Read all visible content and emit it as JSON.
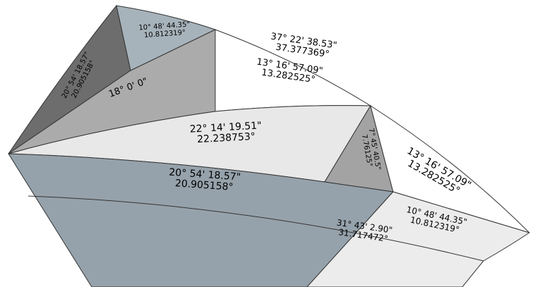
{
  "labels": [
    {
      "angle": "10° 48' 44.35\"",
      "decimal": "10.812319°"
    },
    {
      "angle": "20° 54' 18.57\"",
      "decimal": "20.905158°"
    },
    {
      "angle": "18° 0' 0\""
    },
    {
      "angle": "37° 22' 38.53\"",
      "decimal": "37.377369°"
    },
    {
      "angle": "13° 16' 57.09\"",
      "decimal": "13.282525°"
    },
    {
      "angle": "22° 14' 19.51\"",
      "decimal": "22.238753°"
    },
    {
      "angle": "7° 45' 40.5\"",
      "decimal": "7.76125°"
    },
    {
      "angle": "13° 16' 57.09\"",
      "decimal": "13.282525°"
    },
    {
      "angle": "20° 54' 18.57\"",
      "decimal": "20.905158°"
    },
    {
      "angle": "10° 48' 44.35\"",
      "decimal": "10.812319°"
    },
    {
      "angle": "31° 43' 2.90\"",
      "decimal": "31.717472°"
    }
  ]
}
